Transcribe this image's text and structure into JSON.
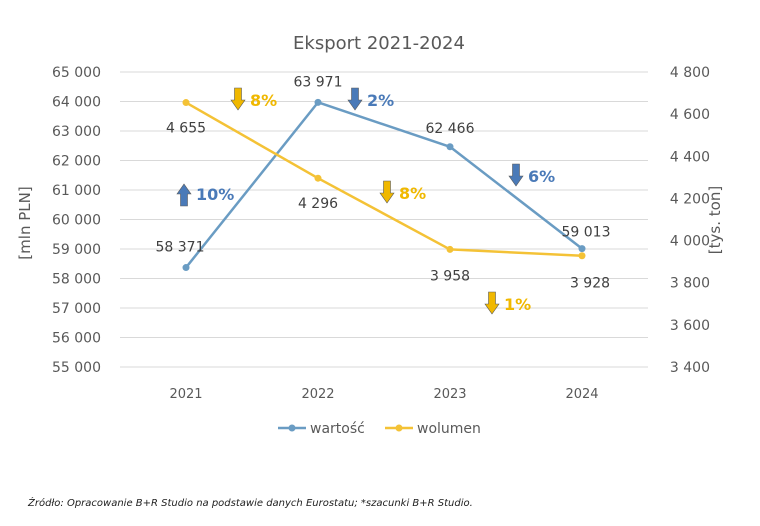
{
  "chart_data": {
    "type": "line",
    "title": "Eksport 2021-2024",
    "categories": [
      "2021",
      "2022",
      "2023",
      "2024"
    ],
    "ylabel": "[mln PLN]",
    "y2label": "[tys. ton]",
    "ylim": [
      55000,
      65000
    ],
    "y2lim": [
      3400,
      4800
    ],
    "yticks": [
      55000,
      56000,
      57000,
      58000,
      59000,
      60000,
      61000,
      62000,
      63000,
      64000,
      65000
    ],
    "y2ticks": [
      3400,
      3600,
      3800,
      4000,
      4200,
      4400,
      4600,
      4800
    ],
    "ytick_labels": [
      "55 000",
      "56 000",
      "57 000",
      "58 000",
      "59 000",
      "60 000",
      "61 000",
      "62 000",
      "63 000",
      "64 000",
      "65 000"
    ],
    "y2tick_labels": [
      "3 400",
      "3 600",
      "3 800",
      "4 000",
      "4 200",
      "4 400",
      "4 600",
      "4 800"
    ],
    "grid": true,
    "legend_position": "bottom",
    "series": [
      {
        "name": "wartość",
        "axis": "left",
        "color": "#6a9cc3",
        "values": [
          58371,
          63971,
          62466,
          59013
        ],
        "labels": [
          "58 371",
          "63 971",
          "62 466",
          "59 013"
        ]
      },
      {
        "name": "wolumen",
        "axis": "right",
        "color": "#f4c236",
        "values": [
          4655,
          4296,
          3958,
          3928
        ],
        "labels": [
          "4 655",
          "4 296",
          "3 958",
          "3 928"
        ]
      }
    ],
    "annotations": [
      {
        "text": "10%",
        "direction": "up",
        "series": "wartość",
        "between": [
          "2021",
          "2022"
        ],
        "color": "#4a7ab8"
      },
      {
        "text": "2%",
        "direction": "down",
        "series": "wartość",
        "between": [
          "2022",
          "2023"
        ],
        "color": "#4a7ab8"
      },
      {
        "text": "6%",
        "direction": "down",
        "series": "wartość",
        "between": [
          "2023",
          "2024"
        ],
        "color": "#4a7ab8"
      },
      {
        "text": "8%",
        "direction": "down",
        "series": "wolumen",
        "between": [
          "2021",
          "2022"
        ],
        "color": "#f0b800"
      },
      {
        "text": "8%",
        "direction": "down",
        "series": "wolumen",
        "between": [
          "2022",
          "2023"
        ],
        "color": "#f0b800"
      },
      {
        "text": "1%",
        "direction": "down",
        "series": "wolumen",
        "between": [
          "2023",
          "2024"
        ],
        "color": "#f0b800"
      }
    ]
  },
  "source_note": "Źródło: Opracowanie B+R Studio na podstawie danych Eurostatu; *szacunki B+R Studio."
}
